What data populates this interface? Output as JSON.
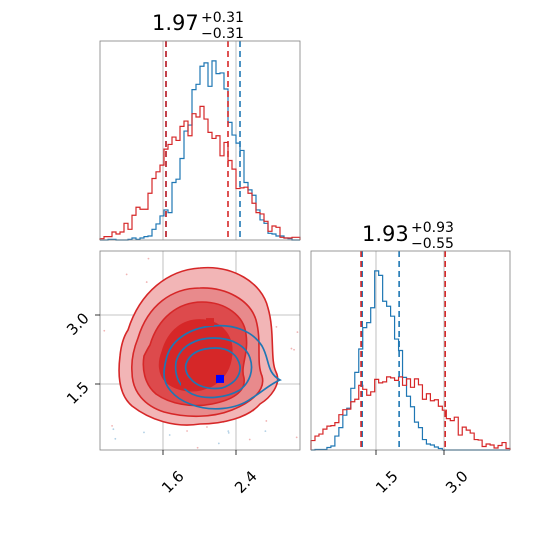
{
  "chart_data": [
    {
      "type": "histogram",
      "panel": "marginal-x",
      "title": {
        "value": "1.97",
        "upper": "+0.31",
        "lower": "−0.31"
      },
      "xlim": [
        1.0,
        3.0
      ],
      "grid": true,
      "series": [
        {
          "color": "#1f77b4",
          "mean": 2.12,
          "sd": 0.24,
          "quantiles": [
            1.66,
            2.4
          ]
        },
        {
          "color": "#d62728",
          "mean": 1.97,
          "sd": 0.34,
          "quantiles": [
            1.66,
            2.28
          ]
        }
      ]
    },
    {
      "type": "histogram",
      "panel": "marginal-y",
      "title": {
        "value": "1.93",
        "upper": "+0.93",
        "lower": "−0.55"
      },
      "xlim": [
        0.5,
        4.0
      ],
      "xticks": [
        "1.5",
        "3.0"
      ],
      "grid": true,
      "series": [
        {
          "color": "#1f77b4",
          "mean": 1.72,
          "sd": 0.33,
          "quantiles": [
            1.4,
            2.05
          ]
        },
        {
          "color": "#d62728",
          "mean": 1.93,
          "sd": 0.75,
          "quantiles": [
            1.38,
            2.86
          ]
        }
      ]
    },
    {
      "type": "contour",
      "panel": "joint",
      "xlim": [
        1.0,
        3.0
      ],
      "ylim": [
        0.5,
        4.0
      ],
      "xticks": [
        "1.6",
        "2.4"
      ],
      "yticks": [
        "3.0",
        "1.5"
      ],
      "grid": true,
      "series": [
        {
          "color": "#d62728",
          "center": [
            1.97,
            1.93
          ],
          "levels": [
            "#f2b5b6",
            "#e88a8c",
            "#dd4a4c",
            "#d62728"
          ]
        },
        {
          "color": "#1f77b4",
          "center": [
            2.2,
            1.72
          ],
          "levels": [
            "#1f77b4"
          ]
        }
      ],
      "markers": [
        {
          "color": "#d62728",
          "x": 2.1,
          "y": 2.75
        },
        {
          "color": "#d62728",
          "x": 1.85,
          "y": 1.65
        },
        {
          "color": "#0000ff",
          "x": 2.2,
          "y": 1.75
        }
      ]
    }
  ]
}
